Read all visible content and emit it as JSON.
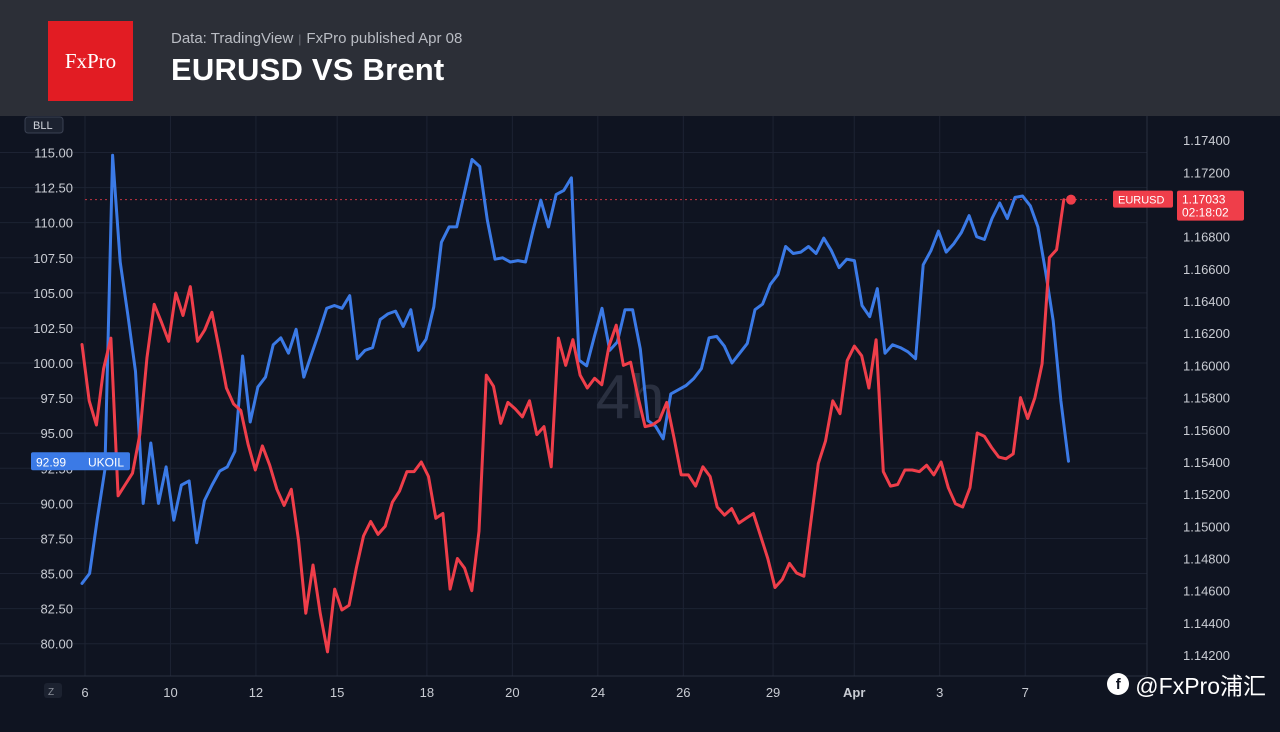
{
  "header": {
    "logo_text": "FxPro",
    "source": "Data: TradingView",
    "published": "FxPro published Apr 08",
    "title": "EURUSD VS Brent"
  },
  "watermark": {
    "icon": "weibo-icon",
    "text": "@FxPro浦汇"
  },
  "chart_data": {
    "type": "line",
    "left_axis_badge": "BLL",
    "bottom_left_badge": "Z",
    "big_faint_label": "4h",
    "x_tick_labels": [
      "6",
      "10",
      "12",
      "15",
      "18",
      "20",
      "24",
      "26",
      "29",
      "Apr",
      "3",
      "7"
    ],
    "y_left": {
      "ticks": [
        "80.00",
        "82.50",
        "85.00",
        "87.50",
        "90.00",
        "92.50",
        "95.00",
        "97.50",
        "100.00",
        "102.50",
        "105.00",
        "107.50",
        "110.00",
        "112.50",
        "115.00"
      ],
      "range": [
        77.7,
        117.6
      ]
    },
    "y_right": {
      "ticks": [
        "1.14200",
        "1.14400",
        "1.14600",
        "1.14800",
        "1.15000",
        "1.15200",
        "1.15400",
        "1.15600",
        "1.15800",
        "1.16000",
        "1.16200",
        "1.16400",
        "1.16600",
        "1.16800",
        "1.17000",
        "1.17200",
        "1.17400"
      ],
      "range": [
        1.1407,
        1.1755
      ]
    },
    "series": [
      {
        "name": "UKOIL",
        "axis": "left",
        "color": "#3b7ae6",
        "last_value_label": "92.99",
        "values": [
          84.3,
          85.0,
          88.9,
          92.4,
          114.8,
          107.2,
          103.4,
          99.4,
          90.0,
          94.3,
          90.0,
          92.6,
          88.8,
          91.3,
          91.6,
          87.2,
          90.2,
          91.3,
          92.3,
          92.6,
          93.7,
          100.5,
          95.8,
          98.3,
          99.0,
          101.3,
          101.8,
          100.7,
          102.4,
          99.0,
          100.6,
          102.2,
          103.9,
          104.1,
          103.9,
          104.8,
          100.3,
          100.9,
          101.1,
          103.1,
          103.5,
          103.7,
          102.6,
          103.8,
          100.9,
          101.7,
          104.0,
          108.6,
          109.7,
          109.7,
          112.1,
          114.5,
          114.0,
          110.2,
          107.4,
          107.5,
          107.2,
          107.3,
          107.2,
          109.5,
          111.6,
          109.7,
          112.0,
          112.3,
          113.2,
          100.2,
          99.8,
          101.9,
          103.9,
          100.9,
          101.5,
          103.8,
          103.8,
          101.0,
          95.9,
          95.5,
          94.6,
          97.8,
          98.1,
          98.4,
          98.9,
          99.6,
          101.8,
          101.9,
          101.2,
          100.0,
          100.7,
          101.4,
          103.8,
          104.2,
          105.6,
          106.3,
          108.3,
          107.8,
          107.9,
          108.3,
          107.8,
          108.9,
          108.0,
          106.8,
          107.4,
          107.3,
          104.1,
          103.3,
          105.3,
          100.7,
          101.3,
          101.1,
          100.8,
          100.3,
          107.0,
          108.0,
          109.4,
          107.9,
          108.5,
          109.3,
          110.5,
          109.0,
          108.8,
          110.3,
          111.4,
          110.3,
          111.8,
          111.9,
          111.2,
          109.7,
          106.5,
          103.0,
          97.3,
          93.0
        ],
        "t_values": [
          0.0,
          0.89,
          1.79,
          2.68,
          3.58,
          4.47,
          5.37,
          6.26,
          7.16,
          8.05,
          8.95,
          9.84,
          10.74,
          11.63,
          12.53,
          13.42,
          14.32,
          15.21,
          16.11,
          17.0,
          17.89,
          18.79,
          19.68,
          20.58,
          21.47,
          22.37,
          23.26,
          24.16,
          25.05,
          25.95,
          26.84,
          27.74,
          28.63,
          29.53,
          30.42,
          31.32,
          32.21,
          33.11,
          34.0,
          34.89,
          35.79,
          36.68,
          37.58,
          38.47,
          39.37,
          40.26,
          41.16,
          42.05,
          42.95,
          43.84,
          44.74,
          45.63,
          46.53,
          47.42,
          48.32,
          49.21,
          50.11,
          51.0,
          51.89,
          52.79,
          53.68,
          54.58,
          55.47,
          56.37,
          57.26,
          58.16,
          59.05,
          59.95,
          60.84,
          61.74,
          62.63,
          63.53,
          64.42,
          65.32,
          66.21,
          67.11,
          68.0,
          68.89,
          69.79,
          70.68,
          71.58,
          72.47,
          73.37,
          74.26,
          75.16,
          76.05,
          76.95,
          77.84,
          78.74,
          79.63,
          80.53,
          81.42,
          82.32,
          83.21,
          84.11,
          85.0,
          85.89,
          86.79,
          87.68,
          88.58,
          89.47,
          90.37,
          91.26,
          92.16,
          93.05,
          93.95,
          94.84,
          95.74,
          96.63,
          97.53,
          98.42,
          99.32,
          100.21,
          101.11,
          102.0,
          102.89,
          103.79,
          104.68,
          105.58,
          106.47,
          107.37,
          108.26,
          109.16,
          110.05,
          110.95,
          111.84,
          112.74,
          113.63,
          114.53,
          115.42
        ]
      },
      {
        "name": "EURUSD",
        "axis": "right",
        "color": "#ef3e4a",
        "last_value_label": "1.17033",
        "countdown_label": "02:18:02",
        "values": [
          1.1613,
          1.1578,
          1.1563,
          1.1598,
          1.1617,
          1.1519,
          1.1526,
          1.1533,
          1.1557,
          1.1605,
          1.1638,
          1.1627,
          1.1615,
          1.1645,
          1.1631,
          1.1649,
          1.1615,
          1.1622,
          1.1633,
          1.161,
          1.1586,
          1.1576,
          1.1572,
          1.1551,
          1.1535,
          1.155,
          1.1538,
          1.1523,
          1.1513,
          1.1523,
          1.1491,
          1.1446,
          1.1476,
          1.1446,
          1.1422,
          1.1461,
          1.1448,
          1.1451,
          1.1474,
          1.1494,
          1.1503,
          1.1495,
          1.15,
          1.1515,
          1.1522,
          1.1534,
          1.1534,
          1.154,
          1.1531,
          1.1505,
          1.1508,
          1.1461,
          1.148,
          1.1474,
          1.146,
          1.1497,
          1.1594,
          1.1587,
          1.1564,
          1.1577,
          1.1573,
          1.1568,
          1.1578,
          1.1557,
          1.1562,
          1.1537,
          1.1617,
          1.16,
          1.1616,
          1.1594,
          1.1586,
          1.1592,
          1.1588,
          1.1612,
          1.1625,
          1.16,
          1.1602,
          1.1581,
          1.1562,
          1.1563,
          1.1566,
          1.1577,
          1.1555,
          1.1532,
          1.1532,
          1.1525,
          1.1537,
          1.1531,
          1.1512,
          1.1507,
          1.1511,
          1.1502,
          1.1505,
          1.1508,
          1.1494,
          1.148,
          1.1462,
          1.1467,
          1.1477,
          1.1471,
          1.1469,
          1.1504,
          1.1539,
          1.1553,
          1.1578,
          1.157,
          1.1603,
          1.1612,
          1.1606,
          1.1586,
          1.1616,
          1.1534,
          1.1525,
          1.1526,
          1.1535,
          1.1535,
          1.1534,
          1.1538,
          1.1532,
          1.154,
          1.1524,
          1.1514,
          1.1512,
          1.1524,
          1.1558,
          1.1556,
          1.1549,
          1.1543,
          1.1542,
          1.1545,
          1.158,
          1.1567,
          1.158,
          1.1601,
          1.1667,
          1.1672,
          1.1703
        ],
        "t_values": [
          0.0,
          0.84,
          1.69,
          2.53,
          3.38,
          4.22,
          5.07,
          5.91,
          6.76,
          7.6,
          8.45,
          9.29,
          10.14,
          10.98,
          11.82,
          12.67,
          13.51,
          14.36,
          15.2,
          16.05,
          16.89,
          17.74,
          18.58,
          19.43,
          20.27,
          21.11,
          21.96,
          22.8,
          23.65,
          24.49,
          25.34,
          26.18,
          27.03,
          27.87,
          28.72,
          29.56,
          30.41,
          31.25,
          32.09,
          32.94,
          33.78,
          34.63,
          35.47,
          36.32,
          37.16,
          38.01,
          38.85,
          39.7,
          40.54,
          41.39,
          42.23,
          43.07,
          43.92,
          44.76,
          45.61,
          46.45,
          47.3,
          48.14,
          48.99,
          49.83,
          50.68,
          51.52,
          52.36,
          53.21,
          54.05,
          54.9,
          55.74,
          56.59,
          57.43,
          58.28,
          59.12,
          59.97,
          60.81,
          61.66,
          62.5,
          63.34,
          64.19,
          65.03,
          65.88,
          66.72,
          67.57,
          68.41,
          69.26,
          70.1,
          70.95,
          71.79,
          72.64,
          73.48,
          74.32,
          75.17,
          76.01,
          76.86,
          77.7,
          78.55,
          79.39,
          80.24,
          81.08,
          81.93,
          82.77,
          83.61,
          84.46,
          85.3,
          86.15,
          86.99,
          87.84,
          88.68,
          89.53,
          90.37,
          91.22,
          92.06,
          92.91,
          93.75,
          94.59,
          95.44,
          96.28,
          97.13,
          97.97,
          98.82,
          99.66,
          100.51,
          101.35,
          102.2,
          103.04,
          103.89,
          104.73,
          105.57,
          106.42,
          107.26,
          108.11,
          108.95,
          109.8,
          110.64,
          111.49,
          112.33,
          113.18,
          114.02,
          114.87,
          115.71
        ]
      }
    ],
    "x_tick_t": [
      0,
      10,
      20,
      29.5,
      40,
      50,
      60,
      70,
      80.5,
      90,
      100,
      110
    ],
    "x_range": [
      -1,
      131
    ],
    "grid": true,
    "legend": "none"
  }
}
